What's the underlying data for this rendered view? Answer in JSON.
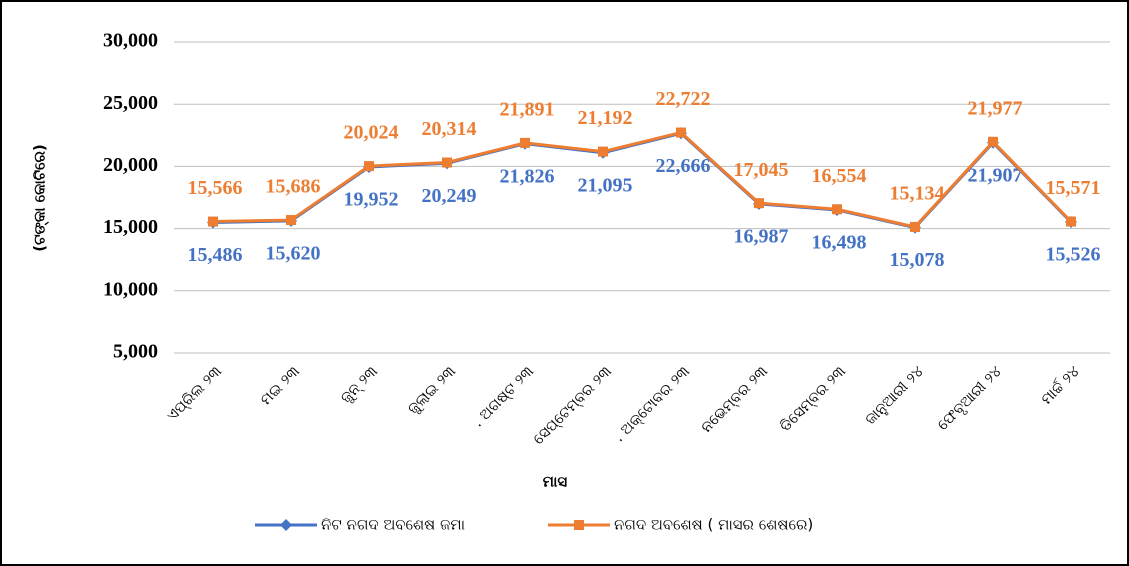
{
  "chart_data": {
    "type": "line",
    "ylabel": "(ଟଙ୍କା କୋଟିରେ)",
    "xlabel": "ମାସ",
    "categories": [
      "ଏପ୍ରିଲ ୨୩",
      "ମଇ ୨୩",
      "ଜୁନ୍ ୨୩",
      "ଜୁଲାଇ ୨୩",
      ". ଅଗଷ୍ଟ ୨୩",
      "ସେପ୍ଟେମ୍ବର ୨୩",
      ". ଅକ୍ଟୋବର ୨୩",
      "ନଭେମ୍ବର ୨୩",
      "ଡିସେମ୍ବର ୨୩",
      "ଜାନୁଆରୀ ୨୪",
      "ଫେବୃଆରୀ ୨୪",
      "ମାର୍ଚ୍ଚ ୨୪"
    ],
    "series": [
      {
        "name": "ନିଟ ନଗଦ ଅବଶେଷ ଜମା",
        "color": "#4472c4",
        "marker": "diamond",
        "values": [
          15486,
          15620,
          19952,
          20249,
          21826,
          21095,
          22666,
          16987,
          16498,
          15078,
          21907,
          15526
        ],
        "value_labels": [
          "15,486",
          "15,620",
          "19,952",
          "20,249",
          "21,826",
          "21,095",
          "22,666",
          "16,987",
          "16,498",
          "15,078",
          "21,907",
          "15,526"
        ]
      },
      {
        "name": "ନଗଦ ଅବଶେଷ ( ମାସର ଶେଷରେ)",
        "color": "#ed7d31",
        "marker": "square",
        "values": [
          15566,
          15686,
          20024,
          20314,
          21891,
          21192,
          22722,
          17045,
          16554,
          15134,
          21977,
          15571
        ],
        "value_labels": [
          "15,566",
          "15,686",
          "20,024",
          "20,314",
          "21,891",
          "21,192",
          "22,722",
          "17,045",
          "16,554",
          "15,134",
          "21,977",
          "15,571"
        ]
      }
    ],
    "ylim": [
      5000,
      30000
    ],
    "yticks": [
      {
        "value": 5000,
        "label": "5,000"
      },
      {
        "value": 10000,
        "label": "10,000"
      },
      {
        "value": 15000,
        "label": "15,000"
      },
      {
        "value": 20000,
        "label": "20,000"
      },
      {
        "value": 25000,
        "label": "25,000"
      },
      {
        "value": 30000,
        "label": "30,000"
      }
    ],
    "grid": true,
    "legend": "bottom"
  }
}
